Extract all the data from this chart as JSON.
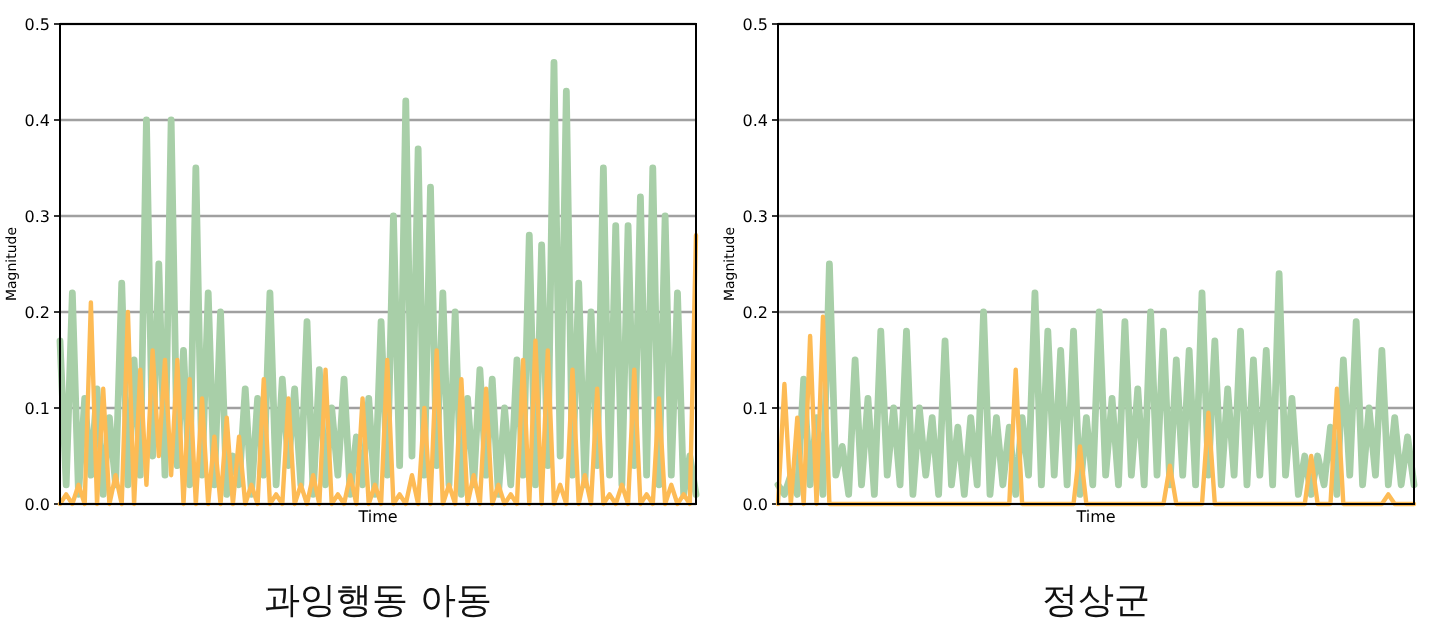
{
  "chart_data": [
    {
      "type": "line",
      "title": "과잉행동 아동",
      "xlabel": "Time",
      "ylabel": "Magnitude",
      "tick_labels": "y",
      "grid": "y",
      "ylim": [
        0,
        0.5
      ],
      "yticks": [
        {
          "value": 0,
          "label": "0.0"
        },
        {
          "value": 0.1,
          "label": "0.1"
        },
        {
          "value": 0.2,
          "label": "0.2"
        },
        {
          "value": 0.3,
          "label": "0.3"
        },
        {
          "value": 0.4,
          "label": "0.4"
        },
        {
          "value": 0.5,
          "label": "0.5"
        }
      ],
      "categories": [
        null,
        null,
        null,
        null,
        null,
        null,
        null,
        null,
        null,
        null,
        null,
        null,
        null,
        null,
        null,
        null,
        null,
        null,
        null,
        null,
        null,
        null,
        null,
        null,
        null,
        null,
        null,
        null,
        null,
        null,
        null,
        null,
        null,
        null,
        null,
        null,
        null,
        null,
        null,
        null,
        null,
        null,
        null,
        null,
        null,
        null,
        null,
        null,
        null,
        null,
        null,
        null,
        null,
        null,
        null,
        null,
        null,
        null,
        null,
        null,
        null,
        null,
        null,
        null,
        null,
        null,
        null,
        null,
        null,
        null,
        null,
        null,
        null,
        null,
        null,
        null,
        null,
        null,
        null,
        null,
        null,
        null,
        null,
        null,
        null,
        null,
        null,
        null,
        null,
        null,
        null,
        null,
        null,
        null,
        null,
        null,
        null,
        null,
        null,
        null,
        null,
        null,
        null,
        null
      ],
      "series": [
        {
          "color": "#a8cfa8",
          "values": [
            0.17,
            0.02,
            0.22,
            0.01,
            0.11,
            0.03,
            0.12,
            0.01,
            0.09,
            0.02,
            0.23,
            0.02,
            0.15,
            0.03,
            0.4,
            0.05,
            0.25,
            0.03,
            0.4,
            0.04,
            0.16,
            0.02,
            0.35,
            0.03,
            0.22,
            0.02,
            0.2,
            0.01,
            0.05,
            0.02,
            0.12,
            0.01,
            0.11,
            0.03,
            0.22,
            0.02,
            0.13,
            0.04,
            0.12,
            0.02,
            0.19,
            0.01,
            0.14,
            0.02,
            0.1,
            0.03,
            0.13,
            0.01,
            0.07,
            0.02,
            0.11,
            0.01,
            0.19,
            0.03,
            0.3,
            0.04,
            0.42,
            0.05,
            0.37,
            0.03,
            0.33,
            0.04,
            0.22,
            0.02,
            0.2,
            0.01,
            0.11,
            0.02,
            0.14,
            0.03,
            0.13,
            0.01,
            0.1,
            0.02,
            0.15,
            0.03,
            0.28,
            0.02,
            0.27,
            0.04,
            0.46,
            0.05,
            0.43,
            0.03,
            0.23,
            0.02,
            0.2,
            0.04,
            0.35,
            0.03,
            0.29,
            0.02,
            0.29,
            0.04,
            0.32,
            0.03,
            0.35,
            0.02,
            0.3,
            0.03,
            0.22,
            0.01,
            0.05,
            0.01
          ]
        },
        {
          "color": "#fdbb55",
          "values": [
            0,
            0.01,
            0,
            0.02,
            0,
            0.21,
            0,
            0.12,
            0,
            0.03,
            0,
            0.2,
            0,
            0.14,
            0.02,
            0.16,
            0.05,
            0.15,
            0.03,
            0.15,
            0,
            0.13,
            0,
            0.11,
            0,
            0.07,
            0,
            0.09,
            0,
            0.07,
            0,
            0.02,
            0,
            0.13,
            0,
            0.01,
            0,
            0.11,
            0,
            0.02,
            0,
            0.03,
            0,
            0.14,
            0,
            0.01,
            0,
            0.03,
            0,
            0.11,
            0,
            0.02,
            0,
            0.15,
            0,
            0.01,
            0,
            0.03,
            0,
            0.1,
            0,
            0.16,
            0,
            0.02,
            0,
            0.13,
            0,
            0.03,
            0,
            0.12,
            0,
            0.02,
            0,
            0.01,
            0,
            0.15,
            0,
            0.17,
            0,
            0.16,
            0,
            0.02,
            0,
            0.14,
            0,
            0.03,
            0,
            0.12,
            0,
            0.01,
            0,
            0.02,
            0,
            0.14,
            0,
            0.01,
            0,
            0.11,
            0,
            0.02,
            0,
            0.01,
            0,
            0.28
          ]
        }
      ]
    },
    {
      "type": "line",
      "title": "정상군",
      "xlabel": "Time",
      "ylabel": "Magnitude",
      "tick_labels": "y",
      "grid": "y",
      "ylim": [
        0,
        0.5
      ],
      "yticks": [
        {
          "value": 0,
          "label": "0.0"
        },
        {
          "value": 0.1,
          "label": "0.1"
        },
        {
          "value": 0.2,
          "label": "0.2"
        },
        {
          "value": 0.3,
          "label": "0.3"
        },
        {
          "value": 0.4,
          "label": "0.4"
        },
        {
          "value": 0.5,
          "label": "0.5"
        }
      ],
      "categories": [
        null,
        null,
        null,
        null,
        null,
        null,
        null,
        null,
        null,
        null,
        null,
        null,
        null,
        null,
        null,
        null,
        null,
        null,
        null,
        null,
        null,
        null,
        null,
        null,
        null,
        null,
        null,
        null,
        null,
        null,
        null,
        null,
        null,
        null,
        null,
        null,
        null,
        null,
        null,
        null,
        null,
        null,
        null,
        null,
        null,
        null,
        null,
        null,
        null,
        null,
        null,
        null,
        null,
        null,
        null,
        null,
        null,
        null,
        null,
        null,
        null,
        null,
        null,
        null,
        null,
        null,
        null,
        null,
        null,
        null,
        null,
        null,
        null,
        null,
        null,
        null,
        null,
        null,
        null,
        null,
        null,
        null,
        null,
        null,
        null,
        null,
        null,
        null,
        null,
        null,
        null,
        null,
        null,
        null,
        null,
        null,
        null,
        null,
        null,
        null
      ],
      "series": [
        {
          "color": "#a8cfa8",
          "values": [
            0.02,
            0.01,
            0.03,
            0.01,
            0.13,
            0.02,
            0.09,
            0.01,
            0.25,
            0.03,
            0.06,
            0.01,
            0.15,
            0.02,
            0.11,
            0.01,
            0.18,
            0.03,
            0.1,
            0.02,
            0.18,
            0.01,
            0.1,
            0.03,
            0.09,
            0.01,
            0.17,
            0.02,
            0.08,
            0.01,
            0.09,
            0.02,
            0.2,
            0.01,
            0.09,
            0.02,
            0.08,
            0.01,
            0.09,
            0.03,
            0.22,
            0.02,
            0.18,
            0.03,
            0.16,
            0.02,
            0.18,
            0.01,
            0.09,
            0.02,
            0.2,
            0.03,
            0.11,
            0.02,
            0.19,
            0.03,
            0.12,
            0.02,
            0.2,
            0.03,
            0.18,
            0.02,
            0.15,
            0.03,
            0.16,
            0.02,
            0.22,
            0.03,
            0.17,
            0.02,
            0.12,
            0.03,
            0.18,
            0.02,
            0.15,
            0.03,
            0.16,
            0.02,
            0.24,
            0.03,
            0.11,
            0.01,
            0.05,
            0.01,
            0.05,
            0.02,
            0.08,
            0.01,
            0.15,
            0.03,
            0.19,
            0.02,
            0.1,
            0.03,
            0.16,
            0.02,
            0.09,
            0.02,
            0.07,
            0.02
          ]
        },
        {
          "color": "#fdbb55",
          "values": [
            0,
            0.125,
            0,
            0.09,
            0,
            0.175,
            0,
            0.195,
            0,
            0,
            0,
            0,
            0,
            0,
            0,
            0,
            0,
            0,
            0,
            0,
            0,
            0,
            0,
            0,
            0,
            0,
            0,
            0,
            0,
            0,
            0,
            0,
            0,
            0,
            0,
            0,
            0,
            0.14,
            0,
            0,
            0,
            0,
            0,
            0,
            0,
            0,
            0,
            0.06,
            0,
            0,
            0,
            0,
            0,
            0,
            0,
            0,
            0,
            0,
            0,
            0,
            0,
            0.04,
            0,
            0,
            0,
            0,
            0,
            0.095,
            0,
            0,
            0,
            0,
            0,
            0,
            0,
            0,
            0,
            0,
            0,
            0,
            0,
            0,
            0,
            0.05,
            0,
            0,
            0,
            0.12,
            0,
            0,
            0,
            0,
            0,
            0,
            0,
            0.01,
            0,
            0,
            0,
            0
          ]
        }
      ]
    }
  ]
}
